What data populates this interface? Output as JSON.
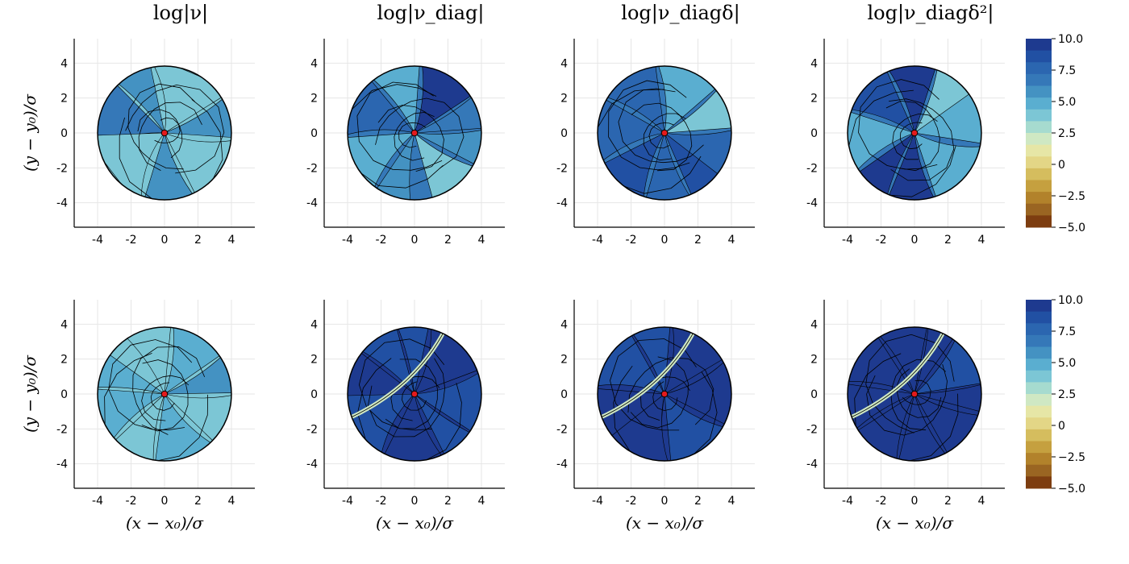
{
  "chart_data": {
    "type": "heatmap",
    "subtype": "filled-contour grid",
    "grid": "on",
    "columns": [
      {
        "title": "log|ν|"
      },
      {
        "title": "log|ν_diag|"
      },
      {
        "title": "log|ν_diagδ|"
      },
      {
        "title": "log|ν_diagδ²|"
      }
    ],
    "rows": 2,
    "xlabel": "(x − x₀)/σ",
    "ylabel": "(y − y₀)/σ",
    "xlim": [
      -5.4,
      5.4
    ],
    "ylim": [
      -5.4,
      5.4
    ],
    "xticks": [
      "-4",
      "-2",
      "0",
      "2",
      "4"
    ],
    "yticks": [
      "4",
      "2",
      "0",
      "-2",
      "-4"
    ],
    "center_marker": {
      "x": 0,
      "y": 0,
      "color": "#e41a1c"
    },
    "colorbar": {
      "range": [
        -5.0,
        10.0
      ],
      "ticks": [
        "10.0",
        "7.5",
        "5.0",
        "2.5",
        "0",
        "−2.5",
        "−5.0"
      ],
      "levels": [
        "#1e3a8f",
        "#2150a3",
        "#2b66b0",
        "#3578b8",
        "#4492c2",
        "#5aaed0",
        "#7cc6d5",
        "#a6dbcf",
        "#cfe8c3",
        "#e6e6a6",
        "#e3d686",
        "#d5bd5e",
        "#c5a03f",
        "#b2822b",
        "#9a6522",
        "#7d3d10"
      ]
    },
    "panels": [
      {
        "row": 1,
        "col": 1,
        "dominant_level": "5.0",
        "radius": 4.0
      },
      {
        "row": 1,
        "col": 2,
        "dominant_level": "7.5",
        "radius": 4.0
      },
      {
        "row": 1,
        "col": 3,
        "dominant_level": "7.5",
        "radius": 4.0
      },
      {
        "row": 1,
        "col": 4,
        "dominant_level": "7.5",
        "radius": 4.0
      },
      {
        "row": 2,
        "col": 1,
        "dominant_level": "5.0",
        "radius": 4.0
      },
      {
        "row": 2,
        "col": 2,
        "dominant_level": "10.0",
        "radius": 4.0
      },
      {
        "row": 2,
        "col": 3,
        "dominant_level": "10.0",
        "radius": 4.0
      },
      {
        "row": 2,
        "col": 4,
        "dominant_level": "10.0",
        "radius": 4.0
      }
    ]
  }
}
